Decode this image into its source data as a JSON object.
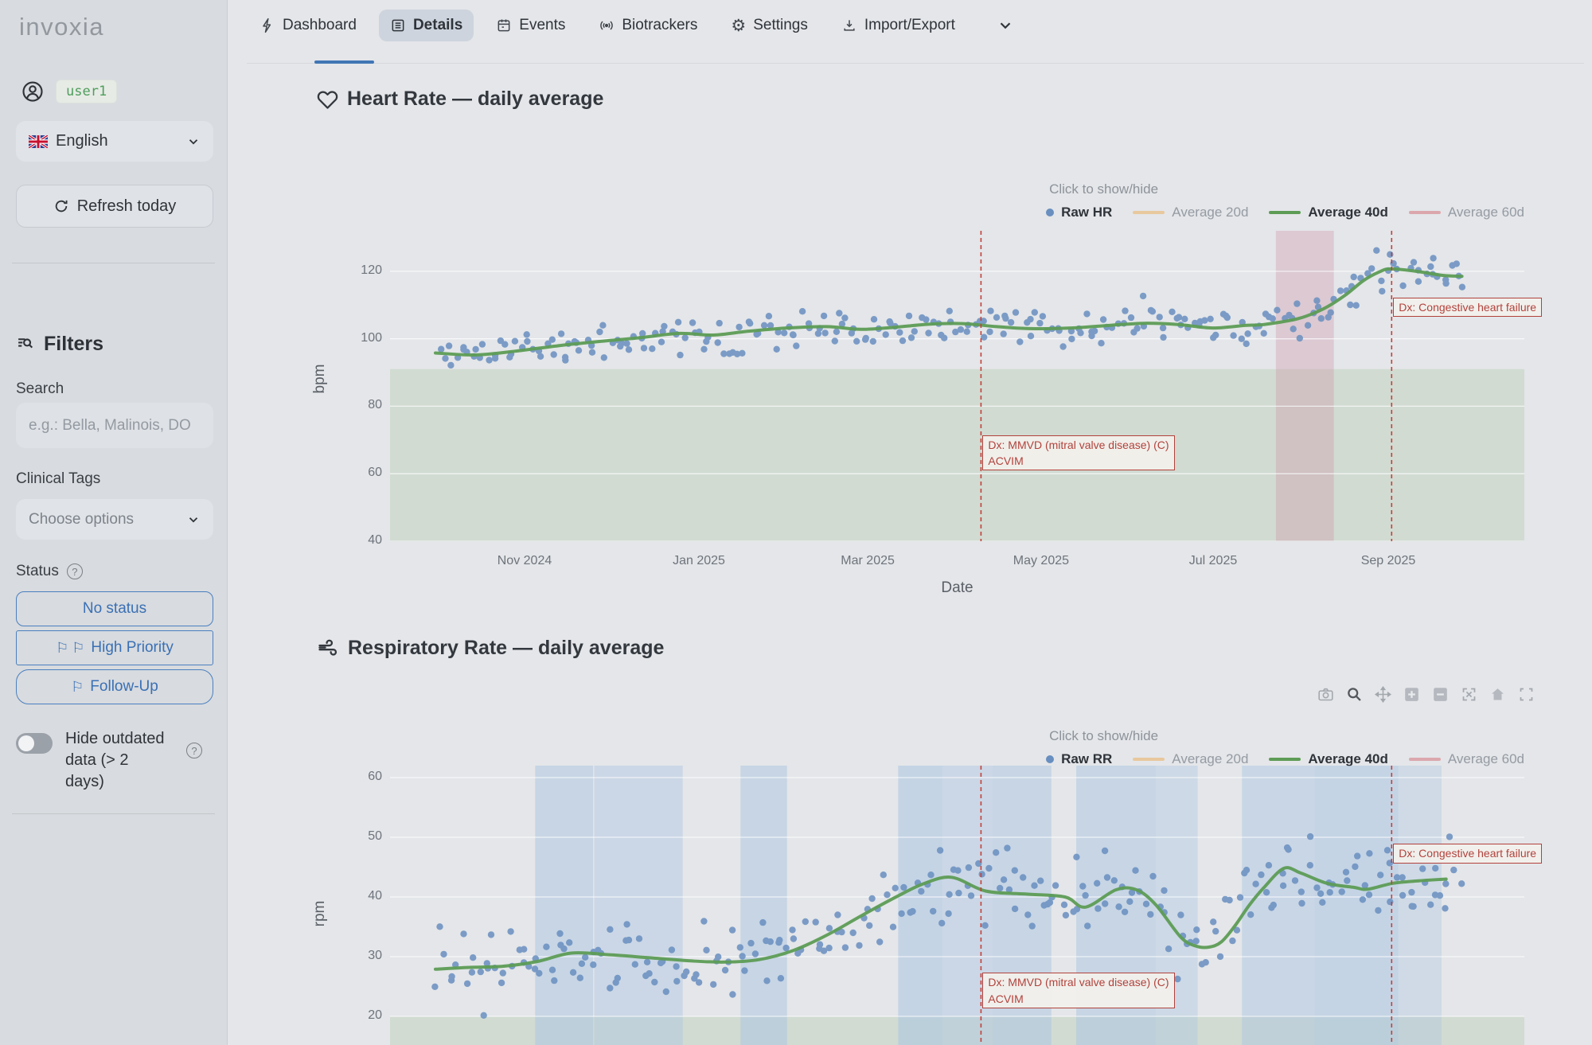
{
  "sidebar": {
    "logo": "invoxia",
    "user": {
      "name": "user1"
    },
    "language": {
      "label": "English"
    },
    "refresh_label": "Refresh today",
    "filters": {
      "title": "Filters",
      "search_label": "Search",
      "search_placeholder": "e.g.: Bella, Malinois, DO",
      "clinical_tags_label": "Clinical Tags",
      "clinical_tags_placeholder": "Choose options",
      "status_label": "Status",
      "status_options": [
        {
          "label": "No status",
          "flags": 0
        },
        {
          "label": "High Priority",
          "flags": 2
        },
        {
          "label": "Follow-Up",
          "flags": 1
        }
      ],
      "hide_outdated_label": "Hide outdated data (> 2 days)"
    }
  },
  "nav": {
    "tabs": [
      {
        "label": "Dashboard",
        "icon": "bolt-icon",
        "active": false
      },
      {
        "label": "Details",
        "icon": "details-icon",
        "active": true
      },
      {
        "label": "Events",
        "icon": "calendar-icon",
        "active": false
      },
      {
        "label": "Biotrackers",
        "icon": "broadcast-icon",
        "active": false
      },
      {
        "label": "Settings",
        "icon": "gear-icon",
        "active": false
      },
      {
        "label": "Import/Export",
        "icon": "download-icon",
        "active": false
      }
    ]
  },
  "colors": {
    "accent_blue": "#3a70b5",
    "raw_dot_blue": "#698fc0",
    "trend_green": "#5d9c55",
    "avg20_tan": "#e8c89e",
    "avg60_pink": "#dba7ad",
    "annotation_red": "#b2423c",
    "user_green": "#4f9e5c"
  },
  "chart_data": [
    {
      "id": "heart-rate",
      "type": "scatter",
      "title": "Heart Rate — daily average",
      "icon": "heart-icon",
      "legend_title": "Click to show/hide",
      "ylabel": "bpm",
      "xlabel": "Date",
      "ylim": [
        40,
        132
      ],
      "yticks": [
        40,
        60,
        80,
        100,
        120
      ],
      "xticks": [
        {
          "label": "Nov 2024",
          "pos": 0.1186
        },
        {
          "label": "Jan 2025",
          "pos": 0.2723
        },
        {
          "label": "Mar 2025",
          "pos": 0.4211
        },
        {
          "label": "May 2025",
          "pos": 0.574
        },
        {
          "label": "Jul 2025",
          "pos": 0.7256
        },
        {
          "label": "Sep 2025",
          "pos": 0.88
        }
      ],
      "normal_zone": {
        "max": 91,
        "color": "rgba(167,196,160,0.30)"
      },
      "highlight_band": {
        "from": 0.781,
        "to": 0.832,
        "color": "rgba(206,146,168,0.35)"
      },
      "vline_color": "#c2403a",
      "vlines": [
        {
          "pos": 0.521,
          "label": [
            "Dx: MMVD (mitral valve disease) (C)",
            "ACVIM"
          ],
          "label_y": 71.5
        },
        {
          "pos": 0.883,
          "label": [
            "Dx: Congestive heart failure"
          ],
          "label_y": 112.3
        }
      ],
      "series": [
        {
          "name": "Raw HR",
          "kind": "scatter",
          "color": "#698fc0",
          "active": true,
          "count": 255,
          "seed": 11,
          "noise": 3.9,
          "xstart": 0.045,
          "xend": 0.947
        },
        {
          "name": "Average 20d",
          "kind": "line",
          "color": "#e8c89e",
          "active": false
        },
        {
          "name": "Average 40d",
          "kind": "line",
          "color": "#5d9c55",
          "active": true,
          "points": [
            [
              0.04,
              95.8
            ],
            [
              0.075,
              95.2
            ],
            [
              0.11,
              96.3
            ],
            [
              0.15,
              98.0
            ],
            [
              0.185,
              99.2
            ],
            [
              0.22,
              100.3
            ],
            [
              0.255,
              101.6
            ],
            [
              0.285,
              101.1
            ],
            [
              0.315,
              102.2
            ],
            [
              0.35,
              103.2
            ],
            [
              0.385,
              103.6
            ],
            [
              0.415,
              102.8
            ],
            [
              0.445,
              103.4
            ],
            [
              0.475,
              104.3
            ],
            [
              0.505,
              104.5
            ],
            [
              0.535,
              103.6
            ],
            [
              0.565,
              103.0
            ],
            [
              0.6,
              103.2
            ],
            [
              0.635,
              104.0
            ],
            [
              0.665,
              104.6
            ],
            [
              0.695,
              104.2
            ],
            [
              0.725,
              103.2
            ],
            [
              0.755,
              104.0
            ],
            [
              0.77,
              104.2
            ],
            [
              0.8,
              105.9
            ],
            [
              0.823,
              108.9
            ],
            [
              0.842,
              112.9
            ],
            [
              0.858,
              117.2
            ],
            [
              0.872,
              119.8
            ],
            [
              0.882,
              120.7
            ],
            [
              0.905,
              120.0
            ],
            [
              0.928,
              118.8
            ],
            [
              0.945,
              118.5
            ]
          ]
        },
        {
          "name": "Average 60d",
          "kind": "line",
          "color": "#dba7ad",
          "active": false
        }
      ]
    },
    {
      "id": "respiratory-rate",
      "type": "scatter",
      "title": "Respiratory Rate — daily average",
      "icon": "wind-icon",
      "legend_title": "Click to show/hide",
      "ylabel": "rpm",
      "ylim": [
        10,
        62
      ],
      "yticks": [
        20,
        30,
        40,
        50,
        60
      ],
      "normal_zone": {
        "max": 20,
        "color": "rgba(167,196,160,0.30)"
      },
      "band_color": "#a9c4e2",
      "bands": [
        {
          "from": 0.128,
          "to": 0.179,
          "opacity": 0.5
        },
        {
          "from": 0.18,
          "to": 0.258,
          "opacity": 0.42
        },
        {
          "from": 0.309,
          "to": 0.35,
          "opacity": 0.5
        },
        {
          "from": 0.448,
          "to": 0.487,
          "opacity": 0.55
        },
        {
          "from": 0.487,
          "to": 0.531,
          "opacity": 0.42
        },
        {
          "from": 0.531,
          "to": 0.583,
          "opacity": 0.5
        },
        {
          "from": 0.605,
          "to": 0.675,
          "opacity": 0.5
        },
        {
          "from": 0.675,
          "to": 0.712,
          "opacity": 0.38
        },
        {
          "from": 0.751,
          "to": 0.815,
          "opacity": 0.45
        },
        {
          "from": 0.815,
          "to": 0.889,
          "opacity": 0.55
        },
        {
          "from": 0.889,
          "to": 0.927,
          "opacity": 0.35
        }
      ],
      "vline_color": "#c2403a",
      "vlines": [
        {
          "pos": 0.521,
          "label": [
            "Dx: MMVD (mitral valve disease) (C)",
            "ACVIM"
          ],
          "label_y": 27.3
        },
        {
          "pos": 0.883,
          "label": [
            "Dx: Congestive heart failure"
          ],
          "label_y": 48.9
        }
      ],
      "series": [
        {
          "name": "Raw RR",
          "kind": "scatter",
          "color": "#698fc0",
          "active": true,
          "count": 255,
          "seed": 23,
          "noise": 4.4,
          "xstart": 0.042,
          "xend": 0.944
        },
        {
          "name": "Average 20d",
          "kind": "line",
          "color": "#e8c89e",
          "active": false
        },
        {
          "name": "Average 40d",
          "kind": "line",
          "color": "#5d9c55",
          "active": true,
          "points": [
            [
              0.04,
              27.9
            ],
            [
              0.07,
              28.2
            ],
            [
              0.1,
              28.4
            ],
            [
              0.13,
              29.2
            ],
            [
              0.16,
              30.6
            ],
            [
              0.195,
              30.3
            ],
            [
              0.23,
              29.8
            ],
            [
              0.265,
              29.3
            ],
            [
              0.295,
              29.1
            ],
            [
              0.325,
              29.5
            ],
            [
              0.355,
              31.0
            ],
            [
              0.385,
              33.6
            ],
            [
              0.415,
              36.8
            ],
            [
              0.445,
              39.9
            ],
            [
              0.47,
              42.2
            ],
            [
              0.495,
              43.3
            ],
            [
              0.525,
              41.0
            ],
            [
              0.56,
              40.5
            ],
            [
              0.595,
              40.0
            ],
            [
              0.613,
              38.3
            ],
            [
              0.64,
              41.2
            ],
            [
              0.658,
              41.2
            ],
            [
              0.675,
              38.7
            ],
            [
              0.697,
              33.3
            ],
            [
              0.71,
              31.8
            ],
            [
              0.722,
              31.6
            ],
            [
              0.733,
              32.5
            ],
            [
              0.745,
              35.2
            ],
            [
              0.757,
              38.5
            ],
            [
              0.77,
              41.5
            ],
            [
              0.788,
              44.8
            ],
            [
              0.803,
              44.0
            ],
            [
              0.826,
              42.3
            ],
            [
              0.85,
              41.6
            ],
            [
              0.862,
              41.3
            ],
            [
              0.884,
              42.3
            ],
            [
              0.907,
              42.7
            ],
            [
              0.931,
              43.0
            ]
          ]
        },
        {
          "name": "Average 60d",
          "kind": "line",
          "color": "#dba7ad",
          "active": false
        }
      ]
    }
  ],
  "toolbar": {
    "buttons": [
      "camera",
      "zoom",
      "pan",
      "zoom-in",
      "zoom-out",
      "autoscale",
      "reset-axes",
      "frame"
    ]
  }
}
